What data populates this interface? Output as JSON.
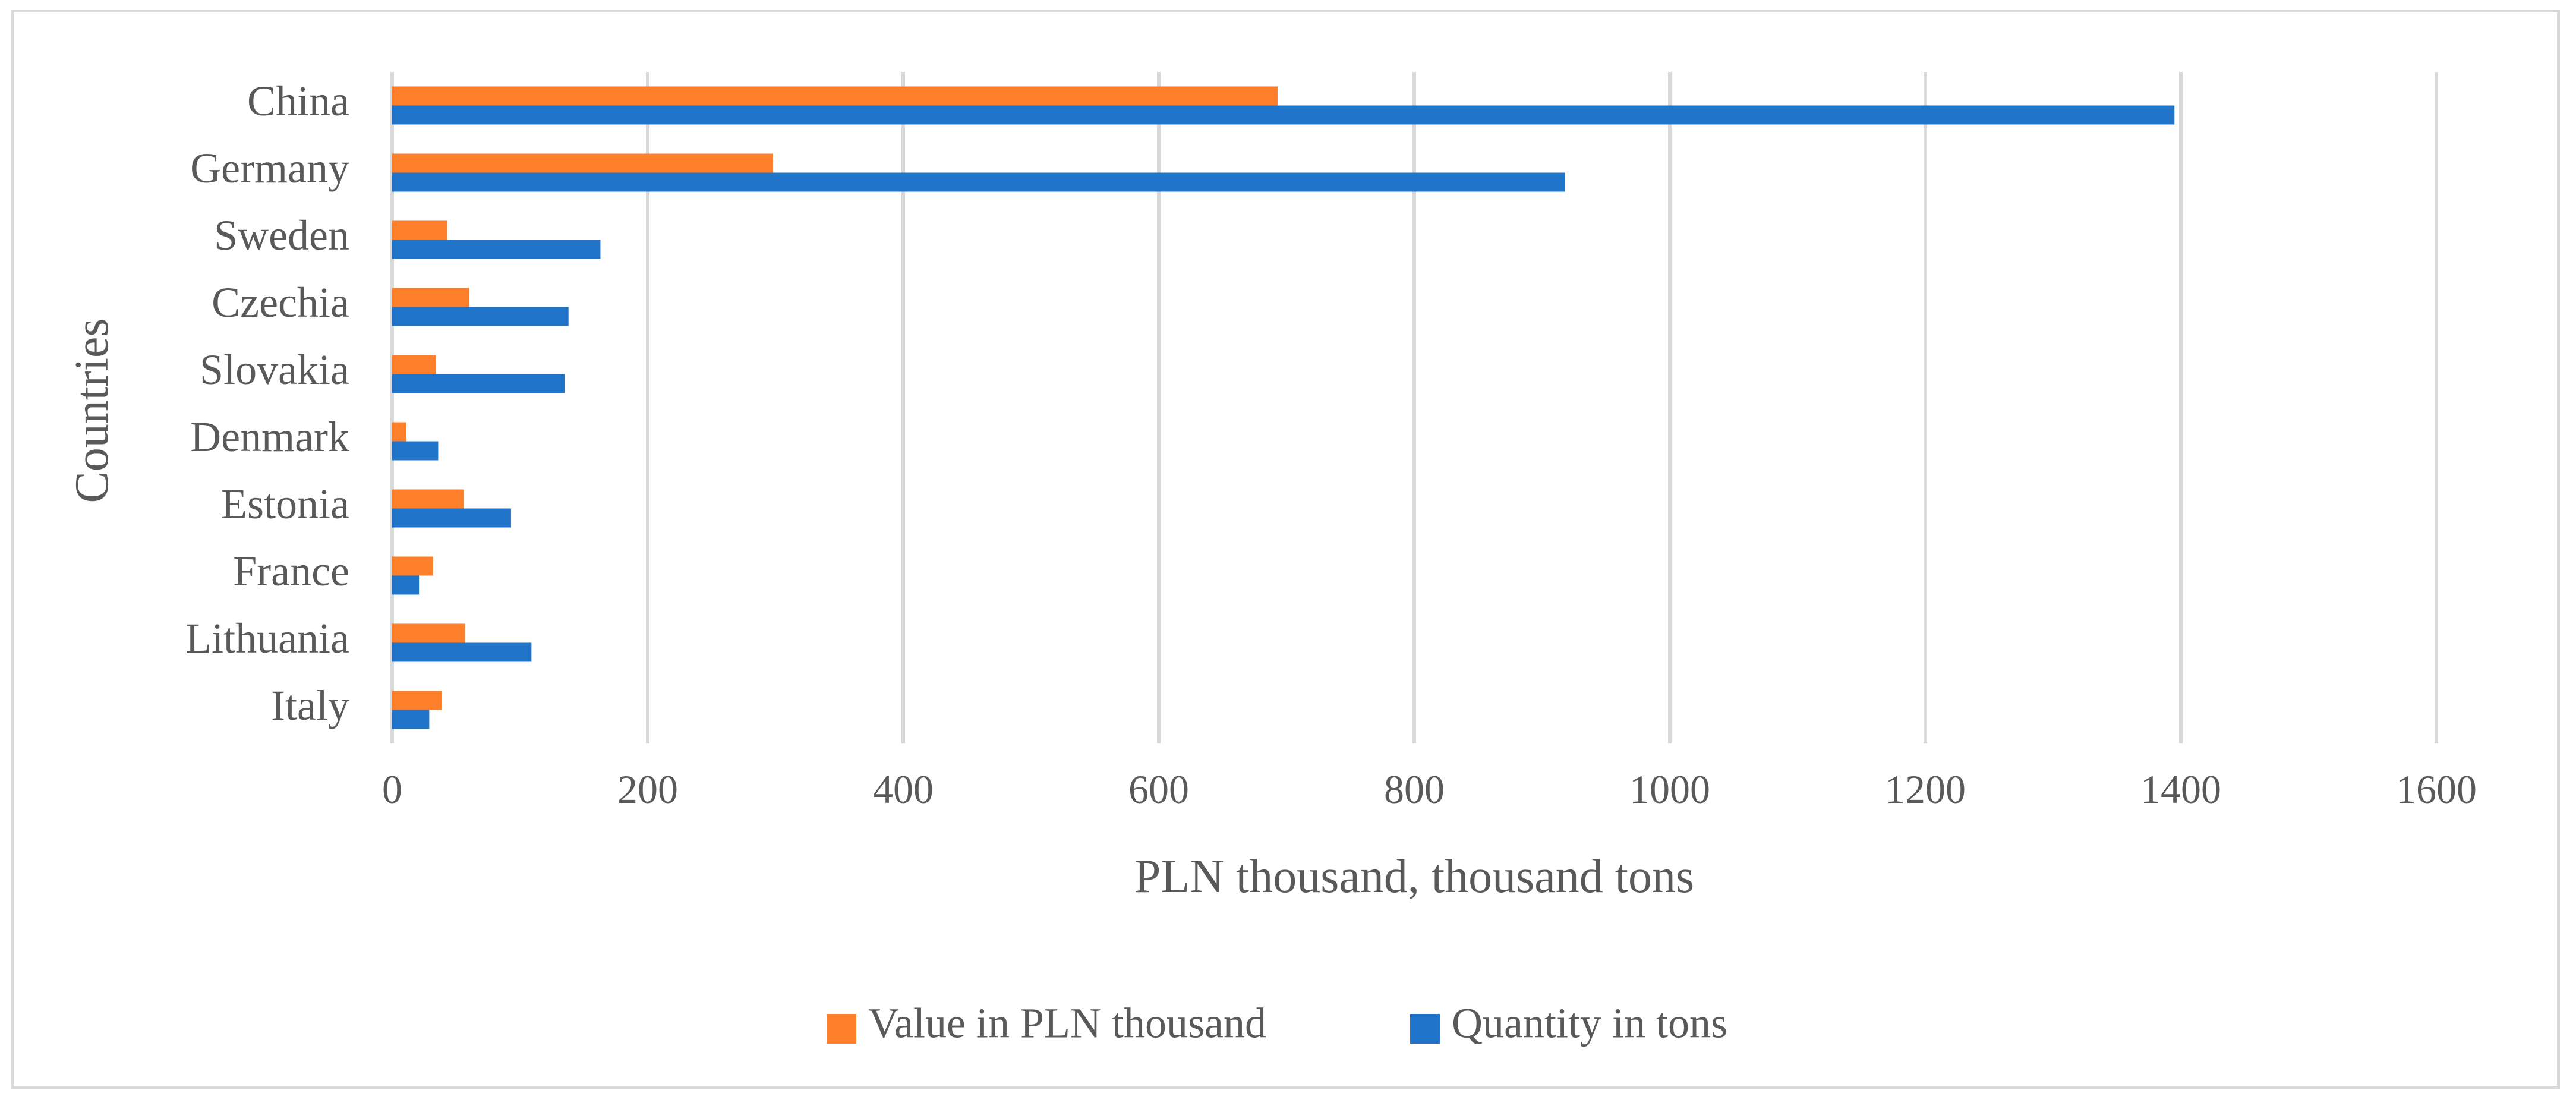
{
  "chart_data": {
    "type": "bar",
    "orientation": "horizontal",
    "categories": [
      "China",
      "Germany",
      "Sweden",
      "Czechia",
      "Slovakia",
      "Denmark",
      "Estonia",
      "France",
      "Lithuania",
      "Italy"
    ],
    "series": [
      {
        "name": "Value in PLN thousand",
        "color": "#fd7f2a",
        "values": [
          693,
          298,
          43,
          60,
          34,
          11,
          56,
          32,
          57,
          39
        ]
      },
      {
        "name": "Quantity in tons",
        "color": "#1f74c9",
        "values": [
          1395,
          918,
          163,
          138,
          135,
          36,
          93,
          21,
          109,
          29
        ]
      }
    ],
    "xlabel": "PLN thousand, thousand tons",
    "ylabel": "Countries",
    "xlim": [
      0,
      1600
    ],
    "xticks": [
      0,
      200,
      400,
      600,
      800,
      1000,
      1200,
      1400,
      1600
    ],
    "grid": "vertical",
    "legend_position": "bottom"
  }
}
